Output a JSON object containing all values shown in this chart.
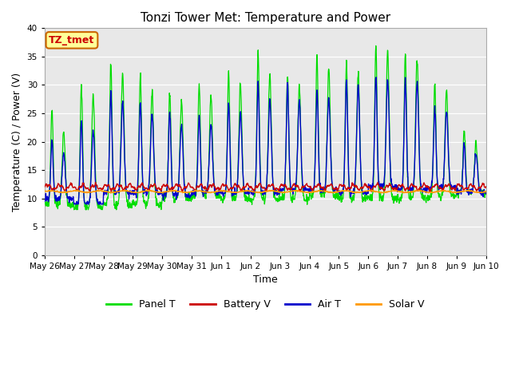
{
  "title": "Tonzi Tower Met: Temperature and Power",
  "xlabel": "Time",
  "ylabel": "Temperature (C) / Power (V)",
  "ylim": [
    0,
    40
  ],
  "yticks": [
    0,
    5,
    10,
    15,
    20,
    25,
    30,
    35,
    40
  ],
  "xtick_labels": [
    "May 26",
    "May 27",
    "May 28",
    "May 29",
    "May 30",
    "May 31",
    "Jun 1",
    "Jun 2",
    "Jun 3",
    "Jun 4",
    "Jun 5",
    "Jun 6",
    "Jun 7",
    "Jun 8",
    "Jun 9",
    "Jun 10"
  ],
  "legend_labels": [
    "Panel T",
    "Battery V",
    "Air T",
    "Solar V"
  ],
  "legend_colors": [
    "#00dd00",
    "#cc0000",
    "#0000cc",
    "#ff9900"
  ],
  "bg_color": "#e8e8e8",
  "annotation_text": "TZ_tmet",
  "annotation_bg": "#ffff99",
  "annotation_border": "#cc6600",
  "panel_peaks": [
    26,
    30,
    34,
    32,
    29,
    30,
    32,
    36,
    32,
    35,
    34,
    37,
    36,
    30,
    22
  ],
  "panel_peaks2": [
    22,
    28,
    32,
    29,
    27,
    28,
    30,
    32,
    30,
    33,
    32,
    36,
    35,
    29,
    20
  ],
  "panel_mins": [
    9,
    8.5,
    9,
    9,
    10,
    10.5,
    10,
    10,
    10,
    10.5,
    10,
    10,
    10,
    10.5,
    11
  ],
  "air_peaks": [
    20,
    24,
    28.5,
    27,
    25,
    24.5,
    27,
    30.5,
    30.5,
    29,
    31,
    31.5,
    31,
    26,
    19.5
  ],
  "air_peaks2": [
    18,
    22,
    27,
    25,
    23,
    23,
    25,
    27.5,
    27.5,
    28,
    30,
    31,
    30.5,
    25.5,
    18
  ],
  "air_mins": [
    10,
    9,
    11,
    11,
    10.5,
    11,
    11,
    11,
    11.5,
    11.5,
    11,
    12,
    11.5,
    12,
    11
  ]
}
